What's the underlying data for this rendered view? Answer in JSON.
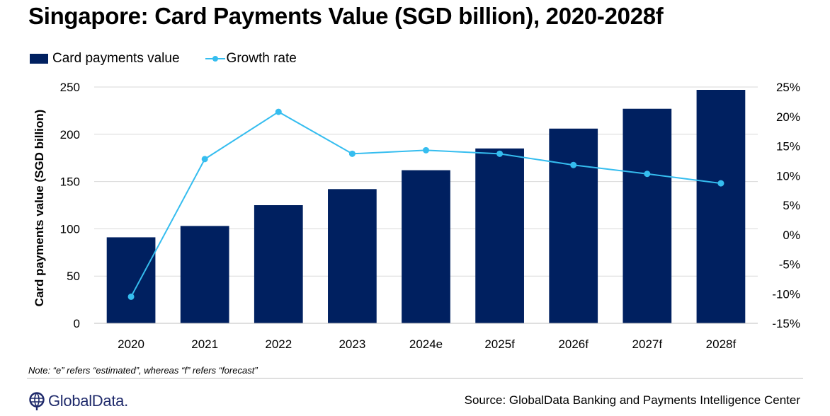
{
  "title": "Singapore: Card Payments Value (SGD billion), 2020-2028f",
  "legend": {
    "bar_label": "Card payments value",
    "line_label": "Growth rate"
  },
  "note": "Note: “e” refers “estimated”, whereas “f” refers “forecast”",
  "source": "Source: GlobalData Banking and Payments Intelligence Center",
  "logo_text": "GlobalData.",
  "chart_data": {
    "type": "bar",
    "categories": [
      "2020",
      "2021",
      "2022",
      "2023",
      "2024e",
      "2025f",
      "2026f",
      "2027f",
      "2028f"
    ],
    "series": [
      {
        "name": "Card payments value",
        "type": "bar",
        "axis": "left",
        "color": "#002060",
        "values": [
          91,
          103,
          125,
          142,
          162,
          185,
          206,
          227,
          247
        ]
      },
      {
        "name": "Growth rate",
        "type": "line",
        "axis": "right",
        "color": "#35bdef",
        "values": [
          -10.5,
          12.8,
          20.8,
          13.7,
          14.3,
          13.7,
          11.8,
          10.3,
          8.7
        ]
      }
    ],
    "ylabel": "Card payments value (SGD billion)",
    "y_left": {
      "min": 0,
      "max": 250,
      "ticks": [
        "0",
        "50",
        "100",
        "150",
        "200",
        "250"
      ]
    },
    "y_right": {
      "min": -15,
      "max": 25,
      "ticks": [
        "-15%",
        "-10%",
        "-5%",
        "0%",
        "5%",
        "10%",
        "15%",
        "20%",
        "25%"
      ]
    },
    "grid": true,
    "legend_position": "top-left"
  }
}
